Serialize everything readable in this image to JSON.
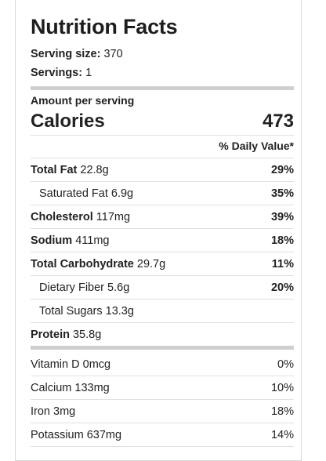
{
  "title": "Nutrition Facts",
  "serving": {
    "size_label": "Serving size:",
    "size_value": "370",
    "servings_label": "Servings:",
    "servings_value": "1"
  },
  "amount_per_serving": "Amount per serving",
  "calories": {
    "label": "Calories",
    "value": "473"
  },
  "daily_value_header": "% Daily Value*",
  "nutrients": [
    {
      "name": "Total Fat",
      "amount": "22.8g",
      "dv": "29%"
    },
    {
      "name": "Saturated Fat",
      "amount": "6.9g",
      "dv": "35%"
    },
    {
      "name": "Cholesterol",
      "amount": "117mg",
      "dv": "39%"
    },
    {
      "name": "Sodium",
      "amount": "411mg",
      "dv": "18%"
    },
    {
      "name": "Total Carbohydrate",
      "amount": "29.7g",
      "dv": "11%"
    },
    {
      "name": "Dietary Fiber",
      "amount": "5.6g",
      "dv": "20%"
    },
    {
      "name": "Total Sugars",
      "amount": "13.3g",
      "dv": ""
    },
    {
      "name": "Protein",
      "amount": "35.8g",
      "dv": ""
    }
  ],
  "vitamins": [
    {
      "name": "Vitamin D",
      "amount": "0mcg",
      "dv": "0%"
    },
    {
      "name": "Calcium",
      "amount": "133mg",
      "dv": "10%"
    },
    {
      "name": "Iron",
      "amount": "3mg",
      "dv": "18%"
    },
    {
      "name": "Potassium",
      "amount": "637mg",
      "dv": "14%"
    }
  ]
}
